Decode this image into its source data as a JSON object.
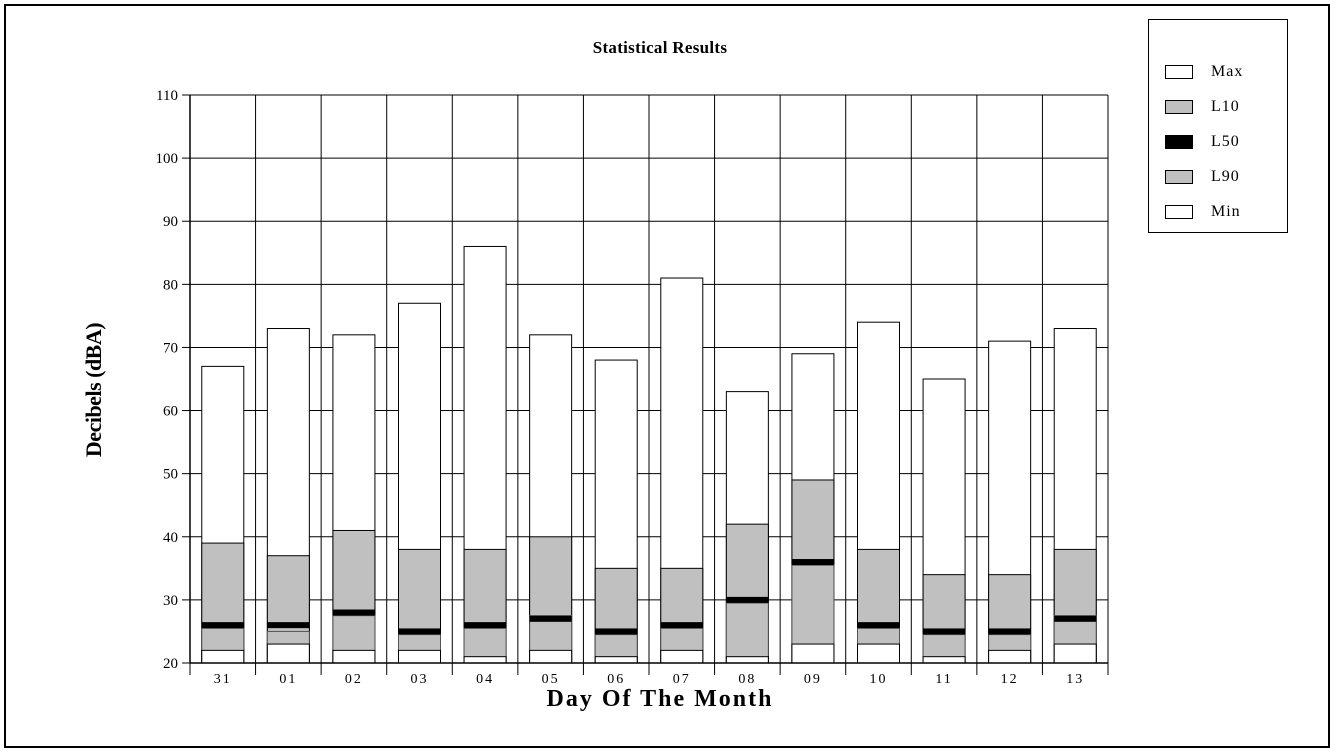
{
  "chart_data": {
    "type": "bar",
    "title": "Statistical Results",
    "xlabel": "Day Of The Month",
    "ylabel": "Decibels (dBA)",
    "ylim": [
      20,
      110
    ],
    "yticks": [
      "20",
      "30",
      "40",
      "50",
      "60",
      "70",
      "80",
      "90",
      "100",
      "110"
    ],
    "categories": [
      "31",
      "01",
      "02",
      "03",
      "04",
      "05",
      "06",
      "07",
      "08",
      "09",
      "10",
      "11",
      "12",
      "13"
    ],
    "series": [
      {
        "name": "Max",
        "values": [
          67,
          73,
          72,
          77,
          86,
          72,
          68,
          81,
          63,
          69,
          74,
          65,
          71,
          73
        ]
      },
      {
        "name": "L10",
        "values": [
          39,
          37,
          41,
          38,
          38,
          40,
          35,
          35,
          42,
          49,
          38,
          34,
          34,
          38
        ]
      },
      {
        "name": "L50",
        "values": [
          26,
          26,
          28,
          25,
          26,
          27,
          25,
          26,
          30,
          36,
          26,
          25,
          25,
          27
        ]
      },
      {
        "name": "L90",
        "values": [
          25.5,
          25,
          27.5,
          24.5,
          25.5,
          27.5,
          24.5,
          25.5,
          29.5,
          35.5,
          25.5,
          24.5,
          24.5,
          27.5
        ]
      },
      {
        "name": "Min",
        "values": [
          22,
          23,
          22,
          22,
          21,
          22,
          21,
          22,
          21,
          23,
          23,
          21,
          22,
          23
        ]
      }
    ],
    "grid": true,
    "legend_position": "top-right",
    "colors": {
      "Max": "#ffffff",
      "L10": "#c0c0c0",
      "L50": "#000000",
      "L90": "#c0c0c0",
      "Min": "#ffffff"
    }
  }
}
